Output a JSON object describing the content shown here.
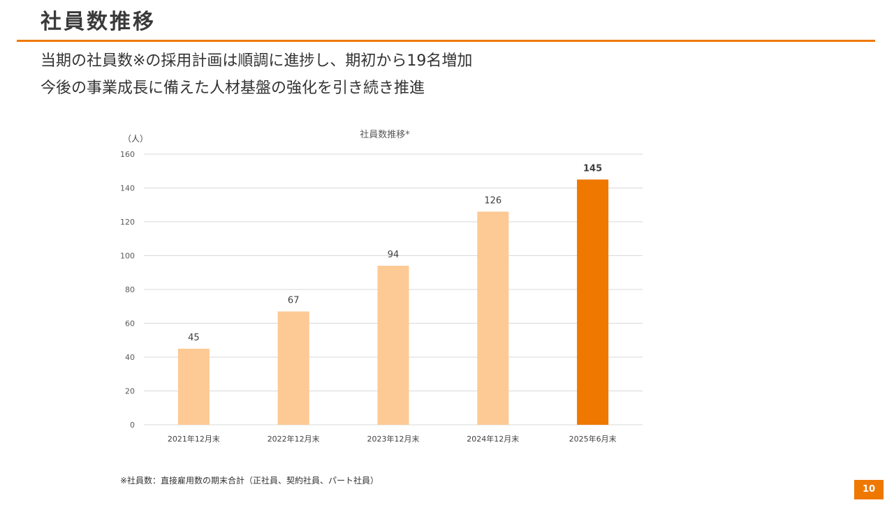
{
  "slide": {
    "title": "社員数推移",
    "headline_1": "当期の社員数※の採用計画は順調に進捗し、期初から19名増加",
    "headline_2": "今後の事業成長に備えた人材基盤の強化を引き続き推進",
    "footnote": "※社員数：直接雇用数の期末合計（正社員、契約社員、パート社員）",
    "page_number": "10"
  },
  "colors": {
    "accent": "#ee7800",
    "bar_light": "#fdc994",
    "bar_highlight": "#ee7800",
    "grid": "#d9d9d9"
  },
  "chart_data": {
    "type": "bar",
    "title": "社員数推移*",
    "ylabel": "（人）",
    "xlabel": "",
    "categories": [
      "2021年12月末",
      "2022年12月末",
      "2023年12月末",
      "2024年12月末",
      "2025年6月末"
    ],
    "values": [
      45,
      67,
      94,
      126,
      145
    ],
    "data_labels": [
      "45",
      "67",
      "94",
      "126",
      "145"
    ],
    "highlight_index": 4,
    "ylim": [
      0,
      160
    ],
    "yticks": [
      0,
      20,
      40,
      60,
      80,
      100,
      120,
      140,
      160
    ],
    "grid": true,
    "legend": "none"
  }
}
